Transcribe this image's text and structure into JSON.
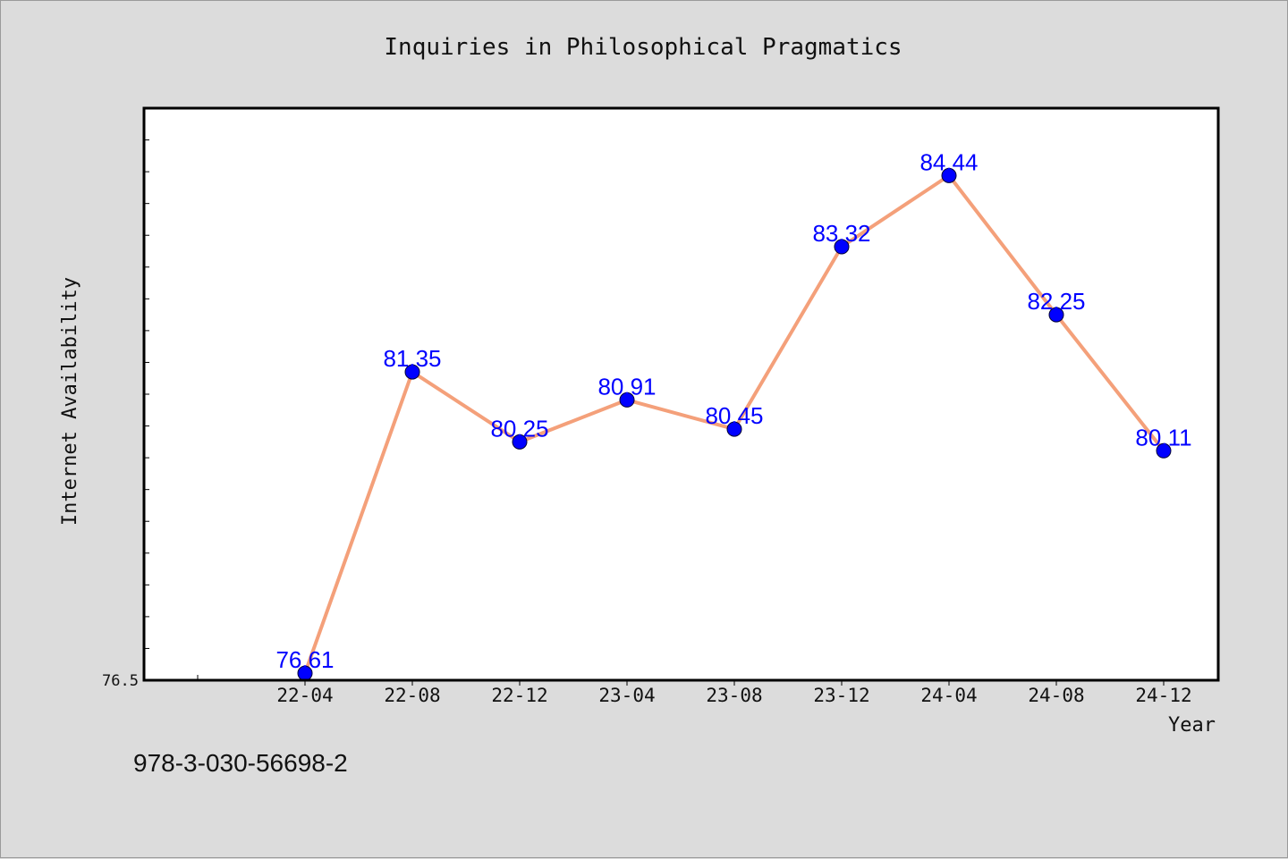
{
  "chart_data": {
    "type": "line",
    "title": "Inquiries in Philosophical Pragmatics",
    "xlabel": "Year",
    "ylabel": "Internet Availability",
    "categories": [
      "22-04",
      "22-08",
      "22-12",
      "23-04",
      "23-08",
      "23-12",
      "24-04",
      "24-08",
      "24-12"
    ],
    "series": [
      {
        "values": [
          76.61,
          81.35,
          80.25,
          80.91,
          80.45,
          83.32,
          84.44,
          82.25,
          80.11
        ],
        "labels": [
          "76.61",
          "81.35",
          "80.25",
          "80.91",
          "80.45",
          "83.32",
          "84.44",
          "82.25",
          "80.11"
        ],
        "line_color": "#f4a07a",
        "marker_color": "#0000ff"
      }
    ],
    "ylim": [
      76.5,
      85.5
    ],
    "ytick_labels": [
      "76.5"
    ],
    "grid": false,
    "legend": false
  },
  "footer_text": "978-3-030-56698-2",
  "colors": {
    "background": "#dcdcdc",
    "plot_background": "#ffffff",
    "label": "#0000ff"
  }
}
